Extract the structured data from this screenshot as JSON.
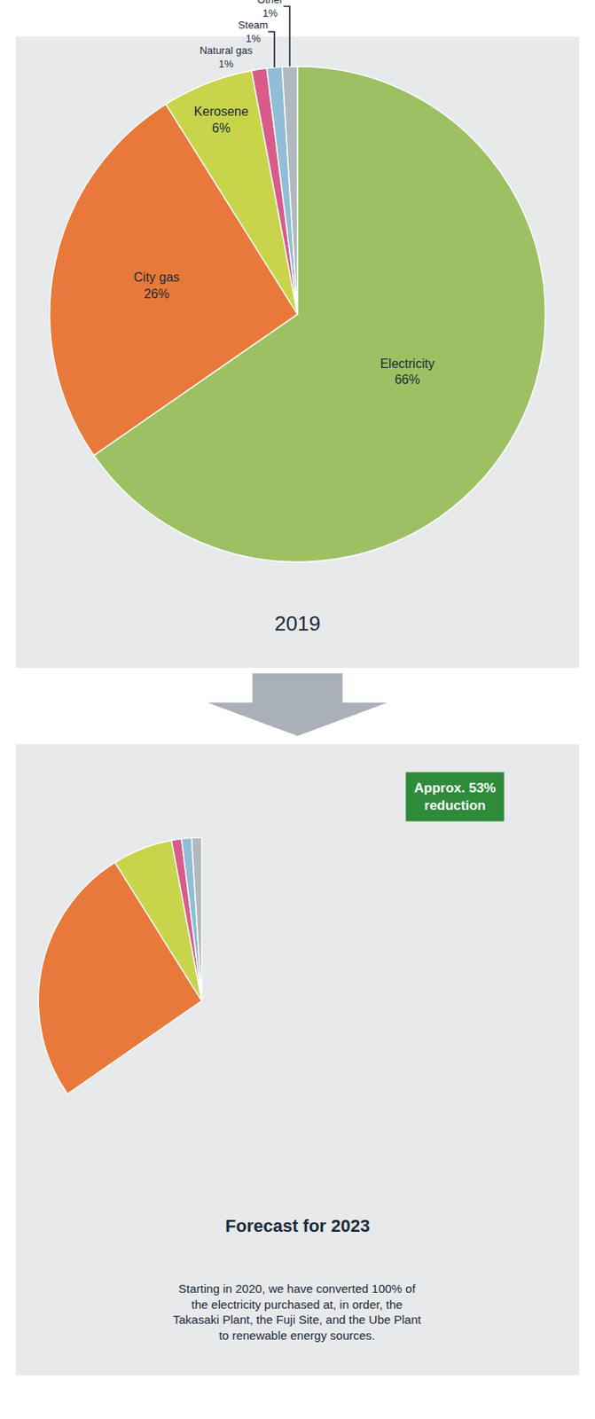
{
  "chart_data": [
    {
      "type": "pie",
      "title": "2019",
      "categories": [
        "Electricity",
        "City gas",
        "Kerosene",
        "Natural gas",
        "Steam",
        "Other"
      ],
      "values": [
        66,
        26,
        6,
        1,
        1,
        1
      ],
      "value_labels": [
        "66%",
        "26%",
        "6%",
        "1%",
        "1%",
        "1%"
      ],
      "colors": [
        "#9dc063",
        "#e8793a",
        "#c8d44a",
        "#d95b8a",
        "#91bdd6",
        "#b0b8c0"
      ],
      "data_labels": true
    },
    {
      "type": "pie",
      "title": "Forecast for 2023",
      "subtitle": "Starting in 2020, we have converted 100% of\nthe electricity purchased at, in order, the\nTakasaki Plant, the Fuji Site, and the Ube Plant\nto renewable energy sources.",
      "annotations": [
        "Approx. 53%\nreduction"
      ],
      "categories": [
        "Electricity",
        "City gas",
        "Kerosene",
        "Natural gas",
        "Steam",
        "Other"
      ],
      "values": [
        66,
        26,
        6,
        1,
        1,
        1
      ],
      "colors": [
        "#e8e9eb",
        "#e8793a",
        "#c8d44a",
        "#d95b8a",
        "#91bdd6",
        "#b0b8c0"
      ],
      "color": "#2e8b3a",
      "data_labels": false
    }
  ]
}
